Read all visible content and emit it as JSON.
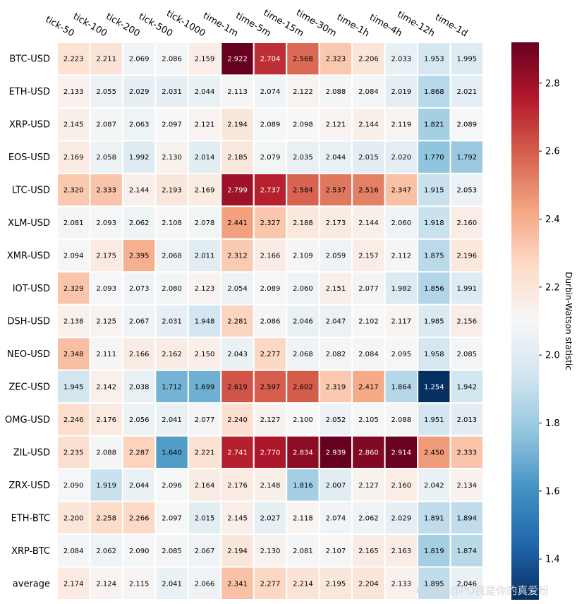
{
  "chart_data": {
    "type": "heatmap",
    "title": "",
    "xlabel": "",
    "ylabel": "",
    "columns": [
      "tick-50",
      "tick-100",
      "tick-200",
      "tick-500",
      "tick-1000",
      "time-1m",
      "time-5m",
      "time-15m",
      "time-30m",
      "time-1h",
      "time-4h",
      "time-12h",
      "time-1d"
    ],
    "rows": [
      "BTC-USD",
      "ETH-USD",
      "XRP-USD",
      "EOS-USD",
      "LTC-USD",
      "XLM-USD",
      "XMR-USD",
      "IOT-USD",
      "DSH-USD",
      "NEO-USD",
      "ZEC-USD",
      "OMG-USD",
      "ZIL-USD",
      "ZRX-USD",
      "ETH-BTC",
      "XRP-BTC",
      "average"
    ],
    "values": [
      [
        2.223,
        2.211,
        2.069,
        2.086,
        2.159,
        2.922,
        2.704,
        2.568,
        2.323,
        2.206,
        2.033,
        1.953,
        1.995
      ],
      [
        2.133,
        2.055,
        2.029,
        2.031,
        2.044,
        2.113,
        2.074,
        2.122,
        2.088,
        2.084,
        2.019,
        1.868,
        2.021
      ],
      [
        2.145,
        2.087,
        2.063,
        2.097,
        2.121,
        2.194,
        2.089,
        2.098,
        2.121,
        2.144,
        2.119,
        1.821,
        2.089
      ],
      [
        2.169,
        2.058,
        1.992,
        2.13,
        2.014,
        2.185,
        2.079,
        2.035,
        2.044,
        2.015,
        2.02,
        1.77,
        1.792
      ],
      [
        2.32,
        2.333,
        2.144,
        2.193,
        2.169,
        2.799,
        2.737,
        2.584,
        2.537,
        2.516,
        2.347,
        1.915,
        2.053
      ],
      [
        2.081,
        2.093,
        2.062,
        2.108,
        2.078,
        2.441,
        2.327,
        2.188,
        2.173,
        2.144,
        2.06,
        1.918,
        2.16
      ],
      [
        2.094,
        2.175,
        2.395,
        2.068,
        2.011,
        2.312,
        2.166,
        2.109,
        2.059,
        2.157,
        2.112,
        1.875,
        2.196
      ],
      [
        2.329,
        2.093,
        2.073,
        2.08,
        2.123,
        2.054,
        2.089,
        2.06,
        2.151,
        2.077,
        1.982,
        1.856,
        1.991
      ],
      [
        2.138,
        2.125,
        2.067,
        2.031,
        1.948,
        2.281,
        2.086,
        2.046,
        2.047,
        2.102,
        2.117,
        1.985,
        2.156
      ],
      [
        2.348,
        2.111,
        2.166,
        2.162,
        2.15,
        2.043,
        2.277,
        2.068,
        2.082,
        2.084,
        2.095,
        1.958,
        2.085
      ],
      [
        1.945,
        2.142,
        2.038,
        1.712,
        1.699,
        2.619,
        2.597,
        2.602,
        2.319,
        2.417,
        1.864,
        1.254,
        1.942
      ],
      [
        2.246,
        2.176,
        2.056,
        2.041,
        2.077,
        2.24,
        2.127,
        2.1,
        2.052,
        2.105,
        2.088,
        1.951,
        2.013
      ],
      [
        2.235,
        2.088,
        2.287,
        1.64,
        2.221,
        2.741,
        2.77,
        2.834,
        2.939,
        2.86,
        2.914,
        2.45,
        2.333
      ],
      [
        2.09,
        1.919,
        2.044,
        2.096,
        2.164,
        2.176,
        2.148,
        1.816,
        2.007,
        2.127,
        2.16,
        2.042,
        2.134
      ],
      [
        2.2,
        2.258,
        2.266,
        2.097,
        2.015,
        2.145,
        2.027,
        2.118,
        2.074,
        2.062,
        2.029,
        1.891,
        1.894
      ],
      [
        2.084,
        2.062,
        2.09,
        2.085,
        2.067,
        2.194,
        2.13,
        2.081,
        2.107,
        2.165,
        2.163,
        1.819,
        1.874
      ],
      [
        2.174,
        2.124,
        2.115,
        2.041,
        2.066,
        2.341,
        2.277,
        2.214,
        2.195,
        2.204,
        2.133,
        1.895,
        2.046
      ]
    ],
    "colormap": "RdBu_r",
    "vmin": 1.28,
    "vmax": 2.92,
    "colorbar": {
      "label": "Durbin-Watson statistic",
      "ticks": [
        1.4,
        1.6,
        1.8,
        2.0,
        2.2,
        2.4,
        2.6,
        2.8
      ],
      "tick_labels": [
        "1.4",
        "1.6",
        "1.8",
        "2.0",
        "2.2",
        "2.4",
        "2.6",
        "2.8"
      ]
    },
    "grid": false,
    "legend": "none"
  },
  "watermark": "CSDN @PD我是你的真爱粉"
}
